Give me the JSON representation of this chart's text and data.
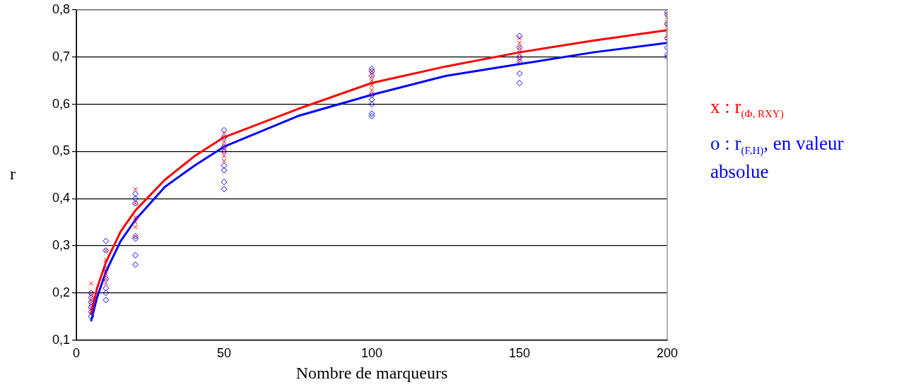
{
  "chart_data": {
    "type": "scatter",
    "xlabel": "Nombre de marqueurs",
    "ylabel": "r",
    "xlim": [
      0,
      200
    ],
    "xticks": [
      0,
      50,
      100,
      150,
      200
    ],
    "ylim": [
      0.1,
      0.8
    ],
    "yticks": [
      {
        "value": 0.1,
        "label": "0,1"
      },
      {
        "value": 0.2,
        "label": "0,2"
      },
      {
        "value": 0.3,
        "label": "0,3"
      },
      {
        "value": 0.4,
        "label": "0,4"
      },
      {
        "value": 0.5,
        "label": "0,5"
      },
      {
        "value": 0.6,
        "label": "0,6"
      },
      {
        "value": 0.7,
        "label": "0,7"
      },
      {
        "value": 0.8,
        "label": "0,8"
      }
    ],
    "grid": "y",
    "legend": "right",
    "series": [
      {
        "name": "x : r$_{(Φ, RXY)}$",
        "marker": "cross",
        "color": "#ff0000",
        "x": [
          5,
          5,
          5,
          5,
          5,
          5,
          10,
          10,
          10,
          10,
          10,
          10,
          20,
          20,
          20,
          20,
          20,
          20,
          50,
          50,
          50,
          50,
          50,
          50,
          50,
          100,
          100,
          100,
          100,
          100,
          100,
          150,
          150,
          150,
          150,
          150,
          150,
          200,
          200,
          200,
          200,
          200,
          200
        ],
        "values": [
          0.22,
          0.2,
          0.19,
          0.18,
          0.17,
          0.16,
          0.29,
          0.27,
          0.25,
          0.24,
          0.23,
          0.22,
          0.42,
          0.39,
          0.36,
          0.35,
          0.34,
          0.32,
          0.54,
          0.53,
          0.52,
          0.51,
          0.5,
          0.49,
          0.48,
          0.67,
          0.66,
          0.65,
          0.64,
          0.63,
          0.62,
          0.74,
          0.73,
          0.72,
          0.71,
          0.7,
          0.69,
          0.79,
          0.78,
          0.77,
          0.76,
          0.75,
          0.74
        ]
      },
      {
        "name": "o : r$_{(F,H)}$, en valeur absolue",
        "marker": "diamond",
        "color": "#0000ff",
        "x": [
          5,
          5,
          5,
          5,
          5,
          5,
          10,
          10,
          10,
          10,
          10,
          10,
          10,
          20,
          20,
          20,
          20,
          20,
          20,
          20,
          50,
          50,
          50,
          50,
          50,
          50,
          50,
          50,
          100,
          100,
          100,
          100,
          100,
          100,
          100,
          100,
          150,
          150,
          150,
          150,
          150,
          150,
          200,
          200,
          200,
          200,
          200,
          200,
          200
        ],
        "values": [
          0.2,
          0.19,
          0.18,
          0.17,
          0.16,
          0.15,
          0.31,
          0.29,
          0.25,
          0.23,
          0.21,
          0.2,
          0.185,
          0.41,
          0.4,
          0.39,
          0.32,
          0.315,
          0.28,
          0.26,
          0.545,
          0.53,
          0.51,
          0.5,
          0.47,
          0.46,
          0.435,
          0.42,
          0.675,
          0.67,
          0.66,
          0.62,
          0.61,
          0.6,
          0.58,
          0.575,
          0.745,
          0.72,
          0.7,
          0.69,
          0.665,
          0.645,
          0.795,
          0.79,
          0.77,
          0.74,
          0.72,
          0.705,
          0.7
        ]
      },
      {
        "type": "line",
        "marker": "none",
        "color": "#ff0000",
        "x": [
          5,
          7,
          10,
          15,
          20,
          30,
          40,
          50,
          75,
          100,
          125,
          150,
          175,
          200
        ],
        "values": [
          0.155,
          0.21,
          0.265,
          0.33,
          0.375,
          0.44,
          0.49,
          0.53,
          0.59,
          0.645,
          0.68,
          0.71,
          0.735,
          0.757
        ]
      },
      {
        "type": "line",
        "marker": "none",
        "color": "#0000ff",
        "x": [
          5,
          7,
          10,
          15,
          20,
          30,
          40,
          50,
          75,
          100,
          125,
          150,
          175,
          200
        ],
        "values": [
          0.14,
          0.19,
          0.245,
          0.31,
          0.355,
          0.425,
          0.47,
          0.51,
          0.575,
          0.62,
          0.66,
          0.685,
          0.71,
          0.73
        ]
      }
    ]
  }
}
